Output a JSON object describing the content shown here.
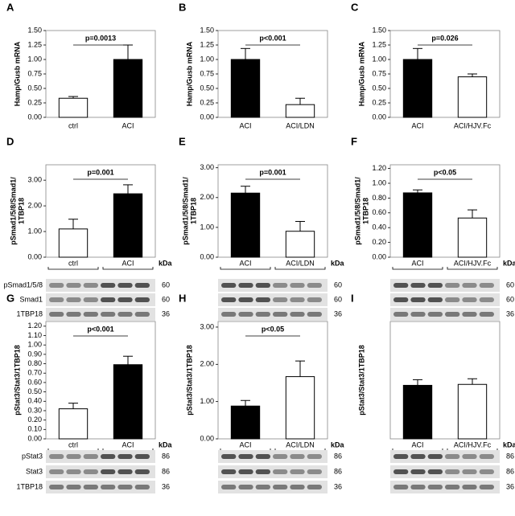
{
  "chart_data": [
    {
      "type": "bar",
      "panel": "A",
      "ylabel": [
        "Hamp/Gusb mRNA"
      ],
      "categories": [
        "ctrl",
        "ACI"
      ],
      "values": [
        0.33,
        1.0
      ],
      "errors": [
        0.03,
        0.25
      ],
      "colors": [
        "#ffffff",
        "#000000"
      ],
      "annotation": "p=0.0013",
      "ylim": [
        0,
        1.5
      ],
      "yticks": [
        {
          "value": 0,
          "label": "0.00"
        },
        {
          "value": 0.25,
          "label": "0.25"
        },
        {
          "value": 0.5,
          "label": "0.50"
        },
        {
          "value": 0.75,
          "label": "0.75"
        },
        {
          "value": 1.0,
          "label": "1.00"
        },
        {
          "value": 1.25,
          "label": "1.25"
        },
        {
          "value": 1.5,
          "label": "1.50"
        }
      ]
    },
    {
      "type": "bar",
      "panel": "B",
      "ylabel": [
        "Hamp/Gusb mRNA"
      ],
      "categories": [
        "ACI",
        "ACI/LDN"
      ],
      "values": [
        1.0,
        0.22
      ],
      "errors": [
        0.19,
        0.11
      ],
      "colors": [
        "#000000",
        "#ffffff"
      ],
      "annotation": "p<0.001",
      "ylim": [
        0,
        1.5
      ],
      "yticks": [
        {
          "value": 0,
          "label": "0.00"
        },
        {
          "value": 0.25,
          "label": "0.25"
        },
        {
          "value": 0.5,
          "label": "0.50"
        },
        {
          "value": 0.75,
          "label": "0.75"
        },
        {
          "value": 1.0,
          "label": "1.00"
        },
        {
          "value": 1.25,
          "label": "1.25"
        },
        {
          "value": 1.5,
          "label": "1.50"
        }
      ]
    },
    {
      "type": "bar",
      "panel": "C",
      "ylabel": [
        "Hamp/Gusb mRNA"
      ],
      "categories": [
        "ACI",
        "ACI/HJV.Fc"
      ],
      "values": [
        1.0,
        0.7
      ],
      "errors": [
        0.19,
        0.05
      ],
      "colors": [
        "#000000",
        "#ffffff"
      ],
      "annotation": "p=0.026",
      "ylim": [
        0,
        1.5
      ],
      "yticks": [
        {
          "value": 0,
          "label": "0.00"
        },
        {
          "value": 0.25,
          "label": "0.25"
        },
        {
          "value": 0.5,
          "label": "0.50"
        },
        {
          "value": 0.75,
          "label": "0.75"
        },
        {
          "value": 1.0,
          "label": "1.00"
        },
        {
          "value": 1.25,
          "label": "1.25"
        },
        {
          "value": 1.5,
          "label": "1.50"
        }
      ]
    },
    {
      "type": "bar",
      "panel": "D",
      "ylabel": [
        "pSmad1/5/8/Smad1/",
        "1TBP18"
      ],
      "categories": [
        "ctrl",
        "ACI"
      ],
      "values": [
        1.1,
        2.47
      ],
      "errors": [
        0.38,
        0.35
      ],
      "colors": [
        "#ffffff",
        "#000000"
      ],
      "annotation": "p=0.001",
      "ylim": [
        0,
        3.6
      ],
      "yticks": [
        {
          "value": 0,
          "label": "0.00"
        },
        {
          "value": 1,
          "label": "1.00"
        },
        {
          "value": 2,
          "label": "2.00"
        },
        {
          "value": 3,
          "label": "3.00"
        }
      ],
      "blot": {
        "unit": "kDa",
        "rows": [
          {
            "label": "pSmad1/5/8",
            "kda": 60
          },
          {
            "label": "Smad1",
            "kda": 60
          },
          {
            "label": "1TBP18",
            "kda": 36
          }
        ]
      }
    },
    {
      "type": "bar",
      "panel": "E",
      "ylabel": [
        "pSmad1/5/8/Smad1/",
        "1TBP18"
      ],
      "categories": [
        "ACI",
        "ACI/LDN"
      ],
      "values": [
        2.15,
        0.87
      ],
      "errors": [
        0.23,
        0.33
      ],
      "colors": [
        "#000000",
        "#ffffff"
      ],
      "annotation": "p=0.001",
      "ylim": [
        0,
        3.1
      ],
      "yticks": [
        {
          "value": 0,
          "label": "0.00"
        },
        {
          "value": 1,
          "label": "1.00"
        },
        {
          "value": 2,
          "label": "2.00"
        },
        {
          "value": 3,
          "label": "3.00"
        }
      ],
      "blot": {
        "unit": "kDa",
        "rows": [
          {
            "kda": 60
          },
          {
            "kda": 60
          },
          {
            "kda": 36
          }
        ]
      }
    },
    {
      "type": "bar",
      "panel": "F",
      "ylabel": [
        "pSmad1/5/8/Smad1/",
        "1TBP18"
      ],
      "categories": [
        "ACI",
        "ACI/HJV.Fc"
      ],
      "values": [
        0.87,
        0.53
      ],
      "errors": [
        0.04,
        0.11
      ],
      "colors": [
        "#000000",
        "#ffffff"
      ],
      "annotation": "p<0.05",
      "ylim": [
        0,
        1.25
      ],
      "yticks": [
        {
          "value": 0,
          "label": "0.00"
        },
        {
          "value": 0.2,
          "label": "0.20"
        },
        {
          "value": 0.4,
          "label": "0.40"
        },
        {
          "value": 0.6,
          "label": "0.60"
        },
        {
          "value": 0.8,
          "label": "0.80"
        },
        {
          "value": 1.0,
          "label": "1.00"
        },
        {
          "value": 1.2,
          "label": "1.20"
        }
      ],
      "blot": {
        "unit": "kDa",
        "rows": [
          {
            "kda": 60
          },
          {
            "kda": 60
          },
          {
            "kda": 36
          }
        ]
      }
    },
    {
      "type": "bar",
      "panel": "G",
      "ylabel": [
        "pStat3/Stat3/1TBP18"
      ],
      "categories": [
        "ctrl",
        "ACI"
      ],
      "values": [
        0.32,
        0.79
      ],
      "errors": [
        0.06,
        0.09
      ],
      "colors": [
        "#ffffff",
        "#000000"
      ],
      "annotation": "p<0.001",
      "ylim": [
        0,
        1.25
      ],
      "yticks": [
        {
          "value": 0,
          "label": "0.00"
        },
        {
          "value": 0.1,
          "label": "0.10"
        },
        {
          "value": 0.2,
          "label": "0.20"
        },
        {
          "value": 0.3,
          "label": "0.30"
        },
        {
          "value": 0.4,
          "label": "0.40"
        },
        {
          "value": 0.5,
          "label": "0.50"
        },
        {
          "value": 0.6,
          "label": "0.60"
        },
        {
          "value": 0.7,
          "label": "0.70"
        },
        {
          "value": 0.8,
          "label": "0.80"
        },
        {
          "value": 0.9,
          "label": "0.90"
        },
        {
          "value": 1.0,
          "label": "1.00"
        },
        {
          "value": 1.1,
          "label": "1.10"
        },
        {
          "value": 1.2,
          "label": "1.20"
        }
      ],
      "blot": {
        "unit": "kDa",
        "rows": [
          {
            "label": "pStat3",
            "kda": 86
          },
          {
            "label": "Stat3",
            "kda": 86
          },
          {
            "label": "1TBP18",
            "kda": 36
          }
        ]
      }
    },
    {
      "type": "bar",
      "panel": "H",
      "ylabel": [
        "pStat3/Stat3/1TBP18"
      ],
      "categories": [
        "ACI",
        "ACI/LDN"
      ],
      "values": [
        0.88,
        1.67
      ],
      "errors": [
        0.15,
        0.42
      ],
      "colors": [
        "#000000",
        "#ffffff"
      ],
      "annotation": "p<0.05",
      "ylim": [
        0,
        3.15
      ],
      "yticks": [
        {
          "value": 0,
          "label": "0.00"
        },
        {
          "value": 1,
          "label": "1.00"
        },
        {
          "value": 2,
          "label": "2.00"
        },
        {
          "value": 3,
          "label": "3.00"
        }
      ],
      "blot": {
        "unit": "kDa",
        "rows": [
          {
            "kda": 86
          },
          {
            "kda": 86
          },
          {
            "kda": 36
          }
        ]
      }
    },
    {
      "type": "bar",
      "panel": "I",
      "ylabel": [
        "pStat3/Stat3/1TBP18"
      ],
      "categories": [
        "ACI",
        "ACI/HJV.Fc"
      ],
      "values": [
        0.57,
        0.58
      ],
      "errors": [
        0.06,
        0.06
      ],
      "colors": [
        "#000000",
        "#ffffff"
      ],
      "ylim": [
        0,
        1.25
      ],
      "blot": {
        "unit": "kDa",
        "rows": [
          {
            "kda": 86
          },
          {
            "kda": 86
          },
          {
            "kda": 36
          }
        ]
      }
    }
  ]
}
